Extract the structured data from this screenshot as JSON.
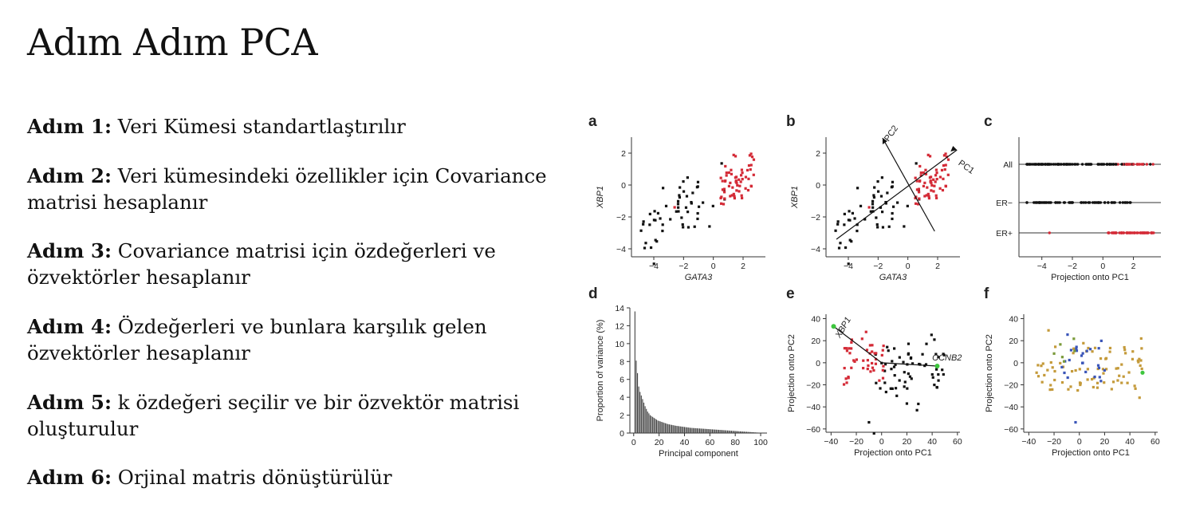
{
  "title": "Adım Adım PCA",
  "steps": [
    {
      "label": "Adım 1:",
      "text": "Veri Kümesi standartlaştırılır"
    },
    {
      "label": "Adım 2:",
      "text": "Veri kümesindeki özellikler için Covariance matrisi hesaplanır"
    },
    {
      "label": "Adım 3:",
      "text": "Covariance matrisi için özdeğerleri ve özvektörler hesaplanır"
    },
    {
      "label": "Adım 4:",
      "text": "Özdeğerleri ve bunlara karşılık gelen özvektörler hesaplanır"
    },
    {
      "label": "Adım 5:",
      "text": "k özdeğeri seçilir ve bir özvektör matrisi oluşturulur"
    },
    {
      "label": "Adım 6:",
      "text": "Orjinal matris dönüştürülür"
    }
  ],
  "colors": {
    "black": "#111111",
    "red": "#d42a36",
    "green": "#3ec63e",
    "gold": "#c49a3a",
    "blue": "#3a55b8",
    "olive": "#7a9a3a"
  },
  "chart_data": [
    {
      "panel": "a",
      "type": "scatter",
      "xlabel": "GATA3",
      "ylabel": "XBP1",
      "xticks": [
        -4,
        -2,
        0,
        2
      ],
      "yticks": [
        2,
        0,
        -2,
        -4
      ],
      "xlim": [
        -5.5,
        3.5
      ],
      "ylim": [
        -4.5,
        3
      ],
      "series": [
        {
          "color": "black",
          "points": "cluster"
        },
        {
          "color": "red",
          "points": "cluster"
        }
      ]
    },
    {
      "panel": "b",
      "type": "scatter",
      "xlabel": "GATA3",
      "ylabel": "XBP1",
      "xticks": [
        -4,
        -2,
        0,
        2
      ],
      "yticks": [
        2,
        0,
        -2,
        -4
      ],
      "xlim": [
        -5.5,
        3.5
      ],
      "ylim": [
        -4.5,
        3
      ],
      "annotations": [
        "PC1",
        "PC2"
      ]
    },
    {
      "panel": "c",
      "type": "scatter",
      "xlabel": "Projection onto PC1",
      "xticks": [
        -4,
        -2,
        0,
        2
      ],
      "categories": [
        "All",
        "ER−",
        "ER+"
      ]
    },
    {
      "panel": "d",
      "type": "bar",
      "xlabel": "Principal component",
      "ylabel": "Proportion of variance (%)",
      "xticks": [
        0,
        20,
        40,
        60,
        80,
        100
      ],
      "yticks": [
        0,
        2,
        4,
        6,
        8,
        10,
        12,
        14
      ],
      "ylim": [
        0,
        14
      ],
      "values": [
        13.6,
        8.1,
        6.7,
        5.2,
        4.6,
        4.2,
        3.8,
        3.4,
        3.0,
        2.7,
        2.4,
        2.2,
        2.0,
        1.9,
        1.8,
        1.7,
        1.6,
        1.5,
        1.4,
        1.35,
        1.3,
        1.25,
        1.2,
        1.15,
        1.1,
        1.05,
        1.0,
        0.97,
        0.94,
        0.91,
        0.88,
        0.85,
        0.82,
        0.8,
        0.78,
        0.76,
        0.74,
        0.72,
        0.7,
        0.68,
        0.66,
        0.64,
        0.62,
        0.6,
        0.58,
        0.57,
        0.56,
        0.55,
        0.54,
        0.53,
        0.52,
        0.51,
        0.5,
        0.49,
        0.48,
        0.47,
        0.46,
        0.45,
        0.44,
        0.43,
        0.42,
        0.41,
        0.4,
        0.39,
        0.38,
        0.37,
        0.36,
        0.35,
        0.34,
        0.33,
        0.32,
        0.31,
        0.3,
        0.29,
        0.28,
        0.27,
        0.26,
        0.25,
        0.24,
        0.23,
        0.22,
        0.21,
        0.2,
        0.19,
        0.18,
        0.17,
        0.16,
        0.15,
        0.14,
        0.13,
        0.12,
        0.11,
        0.1,
        0.09,
        0.08,
        0.07,
        0.06,
        0.05,
        0.04,
        0.03
      ]
    },
    {
      "panel": "e",
      "type": "scatter",
      "xlabel": "Projection onto PC1",
      "ylabel": "Projection onto PC2",
      "xticks": [
        -40,
        -20,
        0,
        20,
        40,
        60
      ],
      "yticks": [
        40,
        20,
        0,
        -20,
        -40,
        -60
      ],
      "annotations": [
        "XBP1",
        "CCNB2"
      ]
    },
    {
      "panel": "f",
      "type": "scatter",
      "xlabel": "Projection onto PC1",
      "ylabel": "Projection onto PC2",
      "xticks": [
        -40,
        -20,
        0,
        20,
        40,
        60
      ],
      "yticks": [
        40,
        20,
        0,
        -20,
        -40,
        -60
      ]
    }
  ]
}
